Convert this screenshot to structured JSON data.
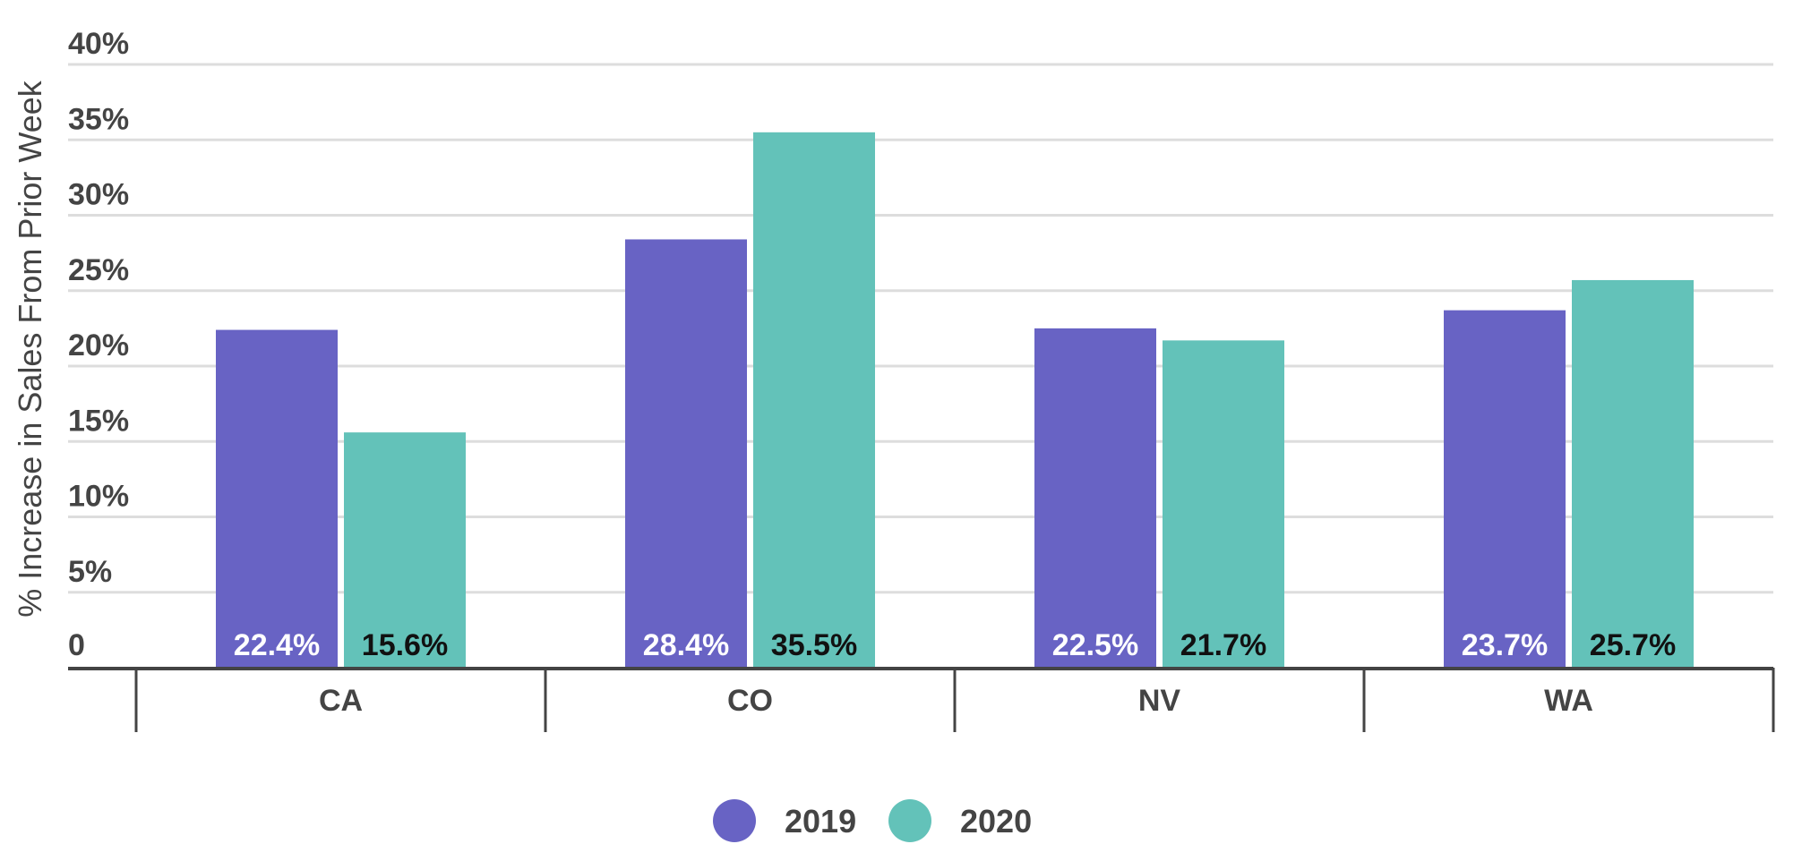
{
  "chart_data": {
    "type": "bar",
    "title": "",
    "xlabel": "",
    "ylabel": "% Increase in Sales From Prior Week",
    "categories": [
      "CA",
      "CO",
      "NV",
      "WA"
    ],
    "series": [
      {
        "name": "2019",
        "values": [
          22.4,
          28.4,
          22.5,
          23.7
        ],
        "labels": [
          "22.4%",
          "28.4%",
          "22.5%",
          "23.7%"
        ],
        "color": "#6863c4",
        "label_color": "#ffffff"
      },
      {
        "name": "2020",
        "values": [
          15.6,
          35.5,
          21.7,
          25.7
        ],
        "labels": [
          "15.6%",
          "35.5%",
          "21.7%",
          "25.7%"
        ],
        "color": "#63c2b9",
        "label_color": "#111111"
      }
    ],
    "ylim": [
      0,
      40
    ],
    "yticks": [
      0,
      5,
      10,
      15,
      20,
      25,
      30,
      35,
      40
    ],
    "ytick_labels": [
      "0",
      "5%",
      "10%",
      "15%",
      "20%",
      "25%",
      "30%",
      "35%",
      "40%"
    ],
    "grid": true,
    "legend_position": "bottom-center",
    "colors": {
      "grid": "#dddddd",
      "axis": "#444444",
      "text": "#444444"
    }
  }
}
